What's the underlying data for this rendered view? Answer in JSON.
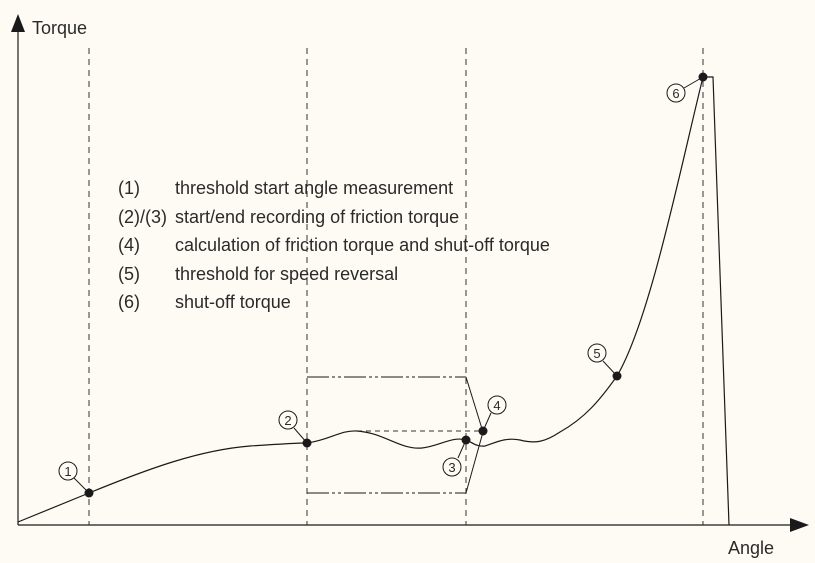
{
  "axes": {
    "y_label": "Torque",
    "x_label": "Angle"
  },
  "legend": [
    {
      "key": "(1)",
      "text": "threshold start angle measurement"
    },
    {
      "key": "(2)/(3)",
      "text": "start/end recording of friction torque"
    },
    {
      "key": "(4)",
      "text": "calculation of friction torque and shut-off torque"
    },
    {
      "key": "(5)",
      "text": "threshold for speed reversal"
    },
    {
      "key": "(6)",
      "text": "shut-off torque"
    }
  ],
  "markers": [
    "1",
    "2",
    "3",
    "4",
    "5",
    "6"
  ],
  "colors": {
    "background": "#fdfbf4",
    "line": "#1a1a1a"
  }
}
